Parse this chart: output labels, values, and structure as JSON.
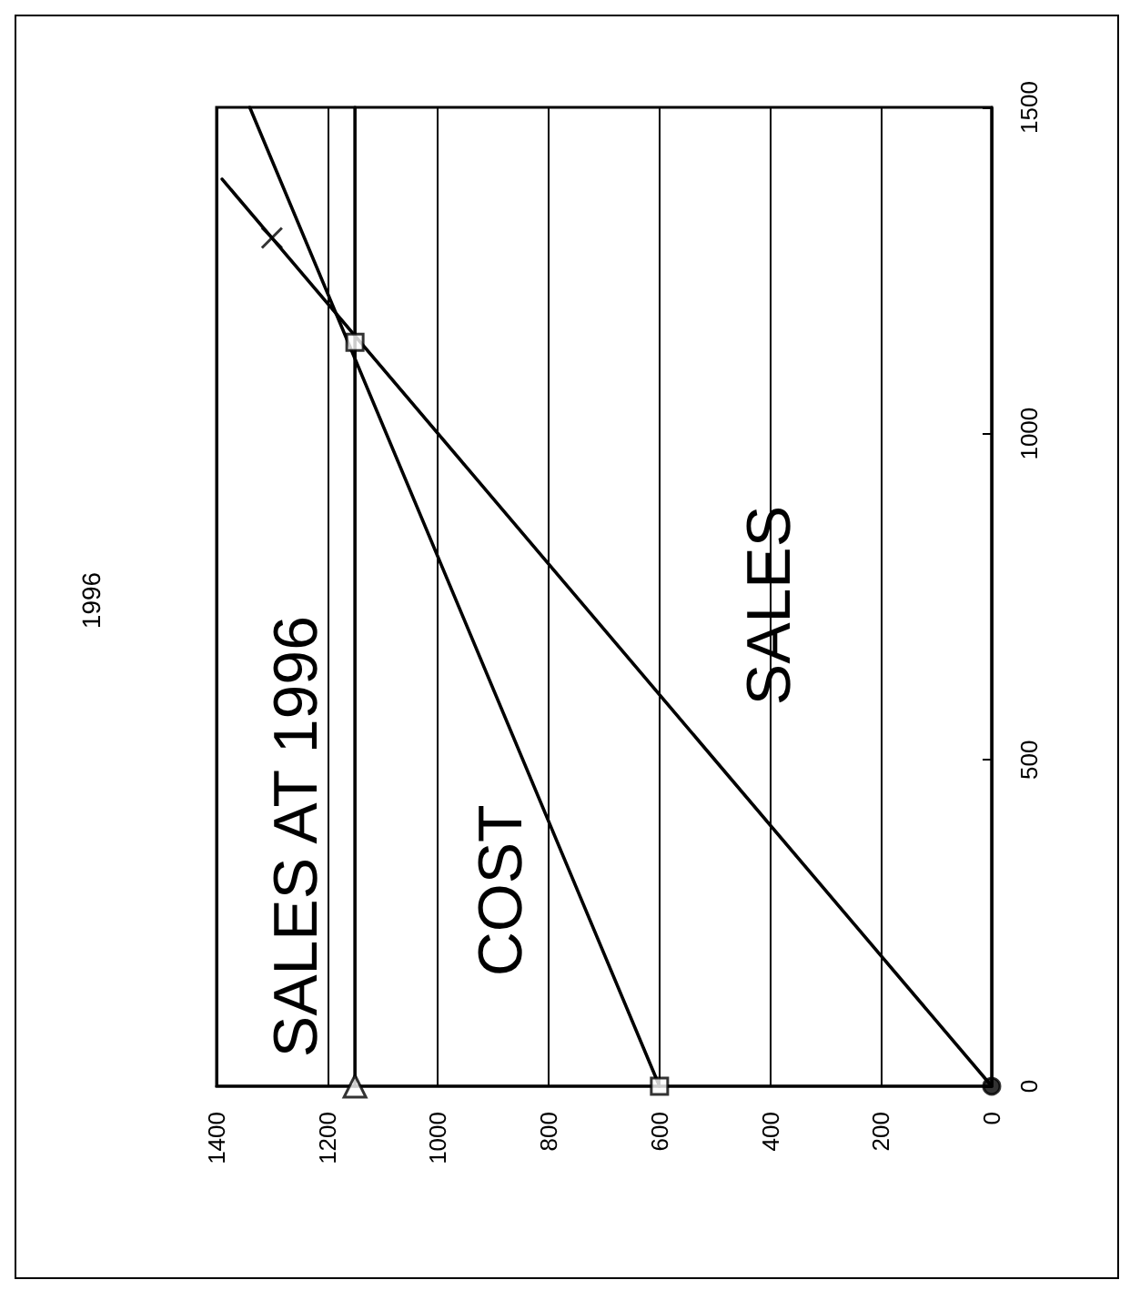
{
  "chart_data": {
    "type": "line",
    "title": "1996",
    "xlim": [
      1400,
      0
    ],
    "xticks": [
      0,
      200,
      400,
      600,
      800,
      1000,
      1200,
      1400
    ],
    "ylim": [
      0,
      1500
    ],
    "yticks": [
      0,
      500,
      1000,
      1500
    ],
    "grid": "x",
    "legend": false,
    "series": [
      {
        "name": "SALES",
        "color": "#000000",
        "x": [
          0,
          1390
        ],
        "values": [
          0,
          1390
        ],
        "marker": "none"
      },
      {
        "name": "COST",
        "color": "#000000",
        "x": [
          600,
          1340
        ],
        "values": [
          0,
          1500
        ],
        "marker": "none"
      },
      {
        "name": "SALES AT 1996",
        "color": "#000000",
        "x": [
          1150,
          1150
        ],
        "values": [
          0,
          1500
        ],
        "marker": "none"
      },
      {
        "type": "scatter",
        "color": "#000000",
        "x": [
          0
        ],
        "values": [
          0
        ],
        "marker": "circle"
      },
      {
        "type": "scatter",
        "color": "#000000",
        "x": [
          1150
        ],
        "values": [
          0
        ],
        "marker": "triangle"
      },
      {
        "type": "scatter",
        "color": "#000000",
        "x": [
          600,
          1150
        ],
        "values": [
          0,
          1140
        ],
        "marker": "square"
      },
      {
        "type": "scatter",
        "color": "#000000",
        "x": [
          1300
        ],
        "values": [
          1300
        ],
        "marker": "cross"
      }
    ]
  }
}
